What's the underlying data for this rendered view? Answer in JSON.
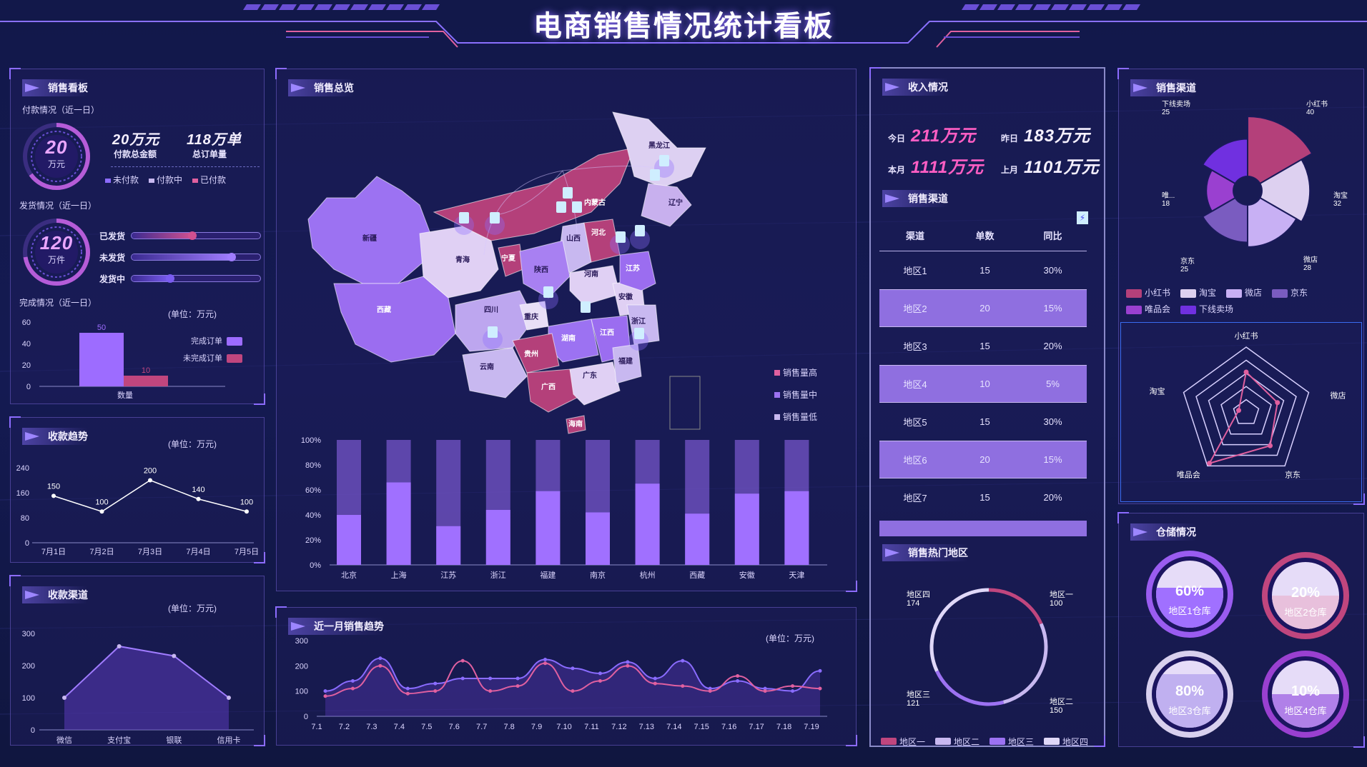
{
  "title": "电商销售情况统计看板",
  "colors": {
    "purple": "#9d6cff",
    "pink": "#e0609f",
    "lavender": "#c8b8f0",
    "magenta": "#b4407a",
    "bg": "#141a52"
  },
  "sales_board": {
    "title": "销售看板",
    "payment_label": "付款情况（近一日）",
    "ring_value": "20",
    "ring_unit": "万元",
    "amount_value": "20万元",
    "amount_label": "付款总金额",
    "orders_value": "118万单",
    "orders_label": "总订单量",
    "legend": [
      "未付款",
      "付款中",
      "已付款"
    ],
    "shipping_label": "发货情况（近一日）",
    "ring2_value": "120",
    "ring2_unit": "万件",
    "ship_bars": [
      {
        "label": "已发货",
        "level": 0.47
      },
      {
        "label": "未发货",
        "level": 0.78
      },
      {
        "label": "发货中",
        "level": 0.3
      }
    ],
    "completion_label": "完成情况（近一日）",
    "unit": "(单位：万元)"
  },
  "completion_chart": {
    "type": "bar",
    "categories": [
      "数量"
    ],
    "series": [
      {
        "name": "完成订单",
        "values": [
          50
        ]
      },
      {
        "name": "未完成订单",
        "values": [
          10
        ]
      }
    ],
    "yticks": [
      "60",
      "40",
      "20",
      "0"
    ],
    "ylim": [
      0,
      60
    ]
  },
  "collection_trend": {
    "title": "收款趋势",
    "unit": "(单位：万元)",
    "chart_data": {
      "type": "line",
      "x": [
        "7月1日",
        "7月2日",
        "7月3日",
        "7月4日",
        "7月5日"
      ],
      "values": [
        150,
        100,
        200,
        140,
        100
      ],
      "ylim": [
        0,
        240
      ],
      "yticks": [
        "240",
        "160",
        "80",
        "0"
      ]
    }
  },
  "collection_channel": {
    "title": "收款渠道",
    "unit": "(单位：万元)",
    "chart_data": {
      "type": "area",
      "x": [
        "微信",
        "支付宝",
        "银联",
        "信用卡"
      ],
      "values": [
        100,
        260,
        230,
        100
      ],
      "ylim": [
        0,
        300
      ],
      "yticks": [
        "300",
        "200",
        "100",
        "0"
      ]
    }
  },
  "overview": {
    "title": "销售总览",
    "provinces": [
      "新疆",
      "西藏",
      "青海",
      "内蒙古",
      "黑龙江",
      "辽宁",
      "宁夏",
      "山西",
      "河北",
      "陕西",
      "河南",
      "四川",
      "重庆",
      "安徽",
      "江苏",
      "湖南",
      "江西",
      "浙江",
      "贵州",
      "云南",
      "广西",
      "广东",
      "福建",
      "海南"
    ],
    "map_legend": [
      "销售量高",
      "销售量中",
      "销售量低"
    ]
  },
  "stacked_chart": {
    "type": "bar",
    "categories": [
      "北京",
      "上海",
      "江苏",
      "浙江",
      "福建",
      "南京",
      "杭州",
      "西藏",
      "安徽",
      "天津"
    ],
    "values": [
      40,
      66,
      31,
      44,
      59,
      42,
      65,
      41,
      57,
      59
    ],
    "yticks": [
      "100%",
      "80%",
      "60%",
      "40%",
      "20%",
      "0%"
    ],
    "ylim": [
      0,
      100
    ]
  },
  "monthly_trend": {
    "title": "近一月销售趋势",
    "unit": "(单位：万元)",
    "chart_data": {
      "type": "line",
      "x": [
        "7.1",
        "7.2",
        "7.3",
        "7.4",
        "7.5",
        "7.6",
        "7.7",
        "7.8",
        "7.9",
        "7.10",
        "7.11",
        "7.12",
        "7.13",
        "7.14",
        "7.15",
        "7.16",
        "7.17",
        "7.18",
        "7.19"
      ],
      "series": [
        {
          "values": [
            100,
            140,
            230,
            110,
            130,
            150,
            150,
            150,
            225,
            190,
            170,
            215,
            150,
            220,
            110,
            140,
            110,
            100,
            180
          ]
        },
        {
          "values": [
            80,
            110,
            200,
            90,
            100,
            220,
            100,
            120,
            210,
            100,
            140,
            200,
            130,
            120,
            100,
            160,
            100,
            120,
            110
          ]
        }
      ],
      "ylim": [
        0,
        300
      ],
      "yticks": [
        "300",
        "200",
        "100",
        "0"
      ]
    }
  },
  "income": {
    "title": "收入情况",
    "rows": [
      {
        "l1": "今日",
        "v1": "211万元",
        "l2": "昨日",
        "v2": "183万元"
      },
      {
        "l1": "本月",
        "v1": "1111万元",
        "l2": "上月",
        "v2": "1101万元"
      }
    ]
  },
  "channel_table": {
    "title": "销售渠道",
    "headers": [
      "渠道",
      "单数",
      "同比"
    ],
    "rows": [
      [
        "地区1",
        "15",
        "30%"
      ],
      [
        "地区2",
        "20",
        "15%"
      ],
      [
        "地区3",
        "15",
        "20%"
      ],
      [
        "地区4",
        "10",
        "5%"
      ],
      [
        "地区5",
        "15",
        "30%"
      ],
      [
        "地区6",
        "20",
        "15%"
      ],
      [
        "地区7",
        "15",
        "20%"
      ]
    ]
  },
  "hot_regions": {
    "title": "销售热门地区",
    "chart_data": {
      "type": "pie",
      "labels": [
        "地区一",
        "地区二",
        "地区三",
        "地区四"
      ],
      "values": [
        100,
        150,
        121,
        174
      ]
    },
    "legend": [
      "地区一",
      "地区二",
      "地区三",
      "地区四"
    ]
  },
  "sales_channel": {
    "title": "销售渠道",
    "chart_data": {
      "type": "pie",
      "labels": [
        "小红书",
        "淘宝",
        "微店",
        "京东",
        "唯品会",
        "下线卖场"
      ],
      "values": [
        40,
        32,
        28,
        25,
        18,
        25
      ]
    },
    "rose_labels": [
      "小红书",
      "淘宝",
      "微店",
      "京东",
      "唯...",
      "下线卖场"
    ],
    "legend": [
      "小红书",
      "淘宝",
      "微店",
      "京东",
      "唯品会",
      "下线卖场"
    ]
  },
  "radar": {
    "labels": [
      "小红书",
      "微店",
      "京东",
      "唯品会",
      "淘宝"
    ],
    "values": [
      0.62,
      0.5,
      0.62,
      0.95,
      0.12
    ]
  },
  "warehouse": {
    "title": "仓储情况",
    "items": [
      {
        "pct": "60%",
        "name": "地区1仓库",
        "level": 0.6
      },
      {
        "pct": "20%",
        "name": "地区2仓库",
        "level": 0.2
      },
      {
        "pct": "80%",
        "name": "地区3仓库",
        "level": 0.8
      },
      {
        "pct": "10%",
        "name": "地区4仓库",
        "level": 0.1
      }
    ]
  }
}
